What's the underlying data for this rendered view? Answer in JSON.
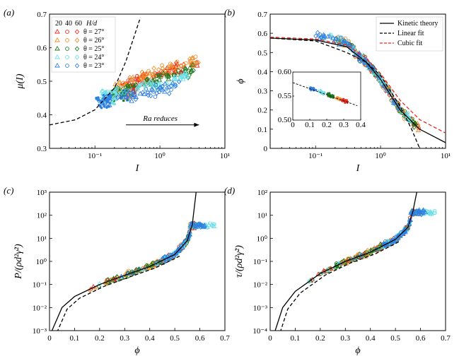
{
  "colors": {
    "theta27": "#e8281e",
    "theta26": "#f28c28",
    "theta25": "#1f7a1f",
    "theta24": "#6fe0e8",
    "theta23": "#2f7fe0",
    "kinetic": "#000000",
    "linear": "#000000",
    "cubic": "#e8281e"
  },
  "chart_data": [
    {
      "panel": "(a)",
      "type": "scatter",
      "xlabel": "I",
      "ylabel": "μ(I)",
      "xscale": "log",
      "xlim": [
        0.02,
        10
      ],
      "ylim": [
        0.3,
        0.7
      ],
      "xticks": [
        "10⁻¹",
        "10⁰",
        "10¹"
      ],
      "yticks": [
        "0.3",
        "0.4",
        "0.5",
        "0.6",
        "0.7"
      ],
      "legend": {
        "header": [
          "20",
          "40",
          "60",
          "H/d"
        ],
        "entries": [
          "θ = 27°",
          "θ = 26°",
          "θ = 25°",
          "θ = 24°",
          "θ = 23°"
        ],
        "placement": "top-left"
      },
      "annotation": "Ra reduces",
      "series": [
        {
          "name": "θ = 27°",
          "color_key": "theta27",
          "x_range": [
            0.25,
            4.0
          ],
          "y_range": [
            0.44,
            0.61
          ]
        },
        {
          "name": "θ = 26°",
          "color_key": "theta26",
          "x_range": [
            0.2,
            4.0
          ],
          "y_range": [
            0.44,
            0.62
          ]
        },
        {
          "name": "θ = 25°",
          "color_key": "theta25",
          "x_range": [
            0.18,
            3.5
          ],
          "y_range": [
            0.43,
            0.58
          ]
        },
        {
          "name": "θ = 24°",
          "color_key": "theta24",
          "x_range": [
            0.12,
            3.0
          ],
          "y_range": [
            0.42,
            0.56
          ]
        },
        {
          "name": "θ = 23°",
          "color_key": "theta23",
          "x_range": [
            0.1,
            2.0
          ],
          "y_range": [
            0.41,
            0.52
          ]
        }
      ],
      "fit_curve": {
        "style": "dashed",
        "x": [
          0.02,
          0.05,
          0.1,
          0.2,
          0.3,
          0.5
        ],
        "y": [
          0.37,
          0.385,
          0.415,
          0.48,
          0.56,
          0.69
        ]
      }
    },
    {
      "panel": "(b)",
      "type": "scatter",
      "xlabel": "I",
      "ylabel": "ϕ",
      "xscale": "log",
      "xlim": [
        0.02,
        10
      ],
      "ylim": [
        0,
        0.7
      ],
      "xticks": [
        "10⁻¹",
        "10⁰",
        "10¹"
      ],
      "yticks": [
        "0",
        "0.1",
        "0.2",
        "0.3",
        "0.4",
        "0.5",
        "0.6",
        "0.7"
      ],
      "legend": {
        "entries": [
          "Kinetic theory",
          "Linear fit",
          "Cubic fit"
        ],
        "placement": "top-right"
      },
      "lines": [
        {
          "name": "Kinetic theory",
          "style": "solid",
          "color_key": "kinetic",
          "x": [
            0.02,
            0.1,
            0.3,
            0.6,
            1,
            2,
            4,
            10
          ],
          "y": [
            0.575,
            0.565,
            0.53,
            0.45,
            0.36,
            0.2,
            0.1,
            0.03
          ]
        },
        {
          "name": "Linear fit",
          "style": "dashed",
          "color_key": "linear",
          "x": [
            0.02,
            0.1,
            0.3,
            0.6,
            1,
            2,
            3,
            4
          ],
          "y": [
            0.575,
            0.56,
            0.5,
            0.45,
            0.38,
            0.22,
            0.1,
            0.0
          ]
        },
        {
          "name": "Cubic fit",
          "style": "dashed",
          "color_key": "cubic",
          "x": [
            0.02,
            0.1,
            0.3,
            0.6,
            1,
            2,
            4,
            10
          ],
          "y": [
            0.58,
            0.57,
            0.54,
            0.47,
            0.39,
            0.25,
            0.15,
            0.08
          ]
        }
      ],
      "inset": {
        "xlim": [
          0,
          0.4
        ],
        "ylim": [
          0.5,
          0.6
        ],
        "xticks": [
          "0",
          "0.1",
          "0.2",
          "0.3",
          "0.4"
        ],
        "yticks": [
          "0.50",
          "0.55",
          "0.60"
        ]
      }
    },
    {
      "panel": "(c)",
      "type": "scatter",
      "xlabel": "ϕ",
      "ylabel": "P/(ρd²γ̇²)",
      "yscale": "log",
      "xlim": [
        0,
        0.7
      ],
      "ylim": [
        0.001,
        1000
      ],
      "xticks": [
        "0",
        "0.1",
        "0.2",
        "0.3",
        "0.4",
        "0.5",
        "0.6",
        "0.7"
      ],
      "yticks": [
        "10⁻³",
        "10⁻²",
        "10⁻¹",
        "10⁰",
        "10¹",
        "10²",
        "10³"
      ],
      "curve": {
        "x": [
          0.01,
          0.05,
          0.1,
          0.2,
          0.3,
          0.4,
          0.5,
          0.55,
          0.57,
          0.585
        ],
        "y": [
          0.001,
          0.01,
          0.03,
          0.1,
          0.25,
          0.6,
          2,
          8,
          40,
          1000
        ]
      }
    },
    {
      "panel": "(d)",
      "type": "scatter",
      "xlabel": "ϕ",
      "ylabel": "τ/(ρd²γ̇²)",
      "yscale": "log",
      "xlim": [
        0,
        0.7
      ],
      "ylim": [
        0.0001,
        100
      ],
      "xticks": [
        "0",
        "0.1",
        "0.2",
        "0.3",
        "0.4",
        "0.5",
        "0.6",
        "0.7"
      ],
      "yticks": [
        "10⁻⁴",
        "10⁻³",
        "10⁻²",
        "10⁻¹",
        "10⁰",
        "10¹",
        "10²"
      ],
      "curve": {
        "x": [
          0.02,
          0.05,
          0.1,
          0.2,
          0.3,
          0.4,
          0.5,
          0.55,
          0.57,
          0.585
        ],
        "y": [
          0.0001,
          0.001,
          0.005,
          0.03,
          0.1,
          0.25,
          0.9,
          3,
          15,
          100
        ]
      }
    }
  ]
}
